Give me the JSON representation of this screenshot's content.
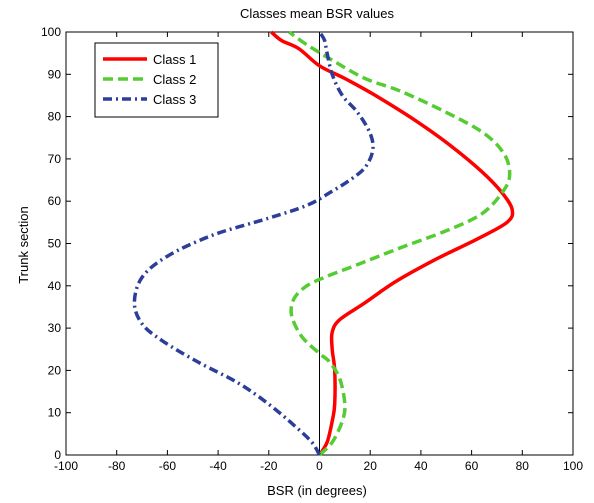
{
  "chart_data": {
    "type": "line",
    "title": "Classes mean BSR values",
    "xlabel": "BSR (in degrees)",
    "ylabel": "Trunk section",
    "xlim": [
      -100,
      100
    ],
    "ylim": [
      0,
      100
    ],
    "xticks": [
      -100,
      -80,
      -60,
      -40,
      -20,
      0,
      20,
      40,
      60,
      80,
      100
    ],
    "yticks": [
      0,
      10,
      20,
      30,
      40,
      50,
      60,
      70,
      80,
      90,
      100
    ],
    "grid": false,
    "legend_position": "top-left",
    "reference_line": {
      "x": 0,
      "color": "#000000"
    },
    "series": [
      {
        "name": "Class 1",
        "color": "#ff0000",
        "style": "solid",
        "points": [
          [
            0,
            0
          ],
          [
            3,
            3
          ],
          [
            5,
            8
          ],
          [
            6,
            12
          ],
          [
            6,
            20
          ],
          [
            5,
            25
          ],
          [
            5,
            29
          ],
          [
            8,
            32
          ],
          [
            18,
            36
          ],
          [
            30,
            41
          ],
          [
            45,
            46
          ],
          [
            62,
            51
          ],
          [
            74,
            55
          ],
          [
            76,
            58
          ],
          [
            72,
            62
          ],
          [
            64,
            67
          ],
          [
            52,
            73
          ],
          [
            38,
            79
          ],
          [
            22,
            85
          ],
          [
            10,
            89
          ],
          [
            0,
            92
          ],
          [
            -8,
            96
          ],
          [
            -15,
            98
          ],
          [
            -19,
            100
          ]
        ]
      },
      {
        "name": "Class 2",
        "color": "#55cc33",
        "style": "dashed",
        "points": [
          [
            0,
            0
          ],
          [
            5,
            3
          ],
          [
            9,
            8
          ],
          [
            10,
            12
          ],
          [
            8,
            18
          ],
          [
            4,
            22
          ],
          [
            0,
            24
          ],
          [
            -7,
            28
          ],
          [
            -11,
            33
          ],
          [
            -10,
            37
          ],
          [
            -5,
            40
          ],
          [
            2,
            42
          ],
          [
            15,
            45
          ],
          [
            32,
            49
          ],
          [
            50,
            53
          ],
          [
            64,
            57
          ],
          [
            72,
            62
          ],
          [
            75,
            66
          ],
          [
            73,
            71
          ],
          [
            65,
            76
          ],
          [
            50,
            81
          ],
          [
            32,
            86
          ],
          [
            18,
            89
          ],
          [
            6,
            93
          ],
          [
            -5,
            97
          ],
          [
            -12,
            100
          ]
        ]
      },
      {
        "name": "Class 3",
        "color": "#2c3e99",
        "style": "dashdot",
        "points": [
          [
            0,
            0
          ],
          [
            -3,
            3
          ],
          [
            -10,
            7
          ],
          [
            -20,
            12
          ],
          [
            -32,
            17
          ],
          [
            -48,
            22
          ],
          [
            -62,
            27
          ],
          [
            -70,
            31
          ],
          [
            -73,
            36
          ],
          [
            -70,
            42
          ],
          [
            -60,
            47
          ],
          [
            -42,
            52
          ],
          [
            -20,
            56
          ],
          [
            -5,
            59
          ],
          [
            4,
            62
          ],
          [
            12,
            65
          ],
          [
            18,
            68
          ],
          [
            21,
            72
          ],
          [
            20,
            76
          ],
          [
            15,
            81
          ],
          [
            9,
            85
          ],
          [
            5,
            90
          ],
          [
            3,
            95
          ],
          [
            2,
            98
          ],
          [
            0,
            100
          ]
        ]
      }
    ]
  }
}
